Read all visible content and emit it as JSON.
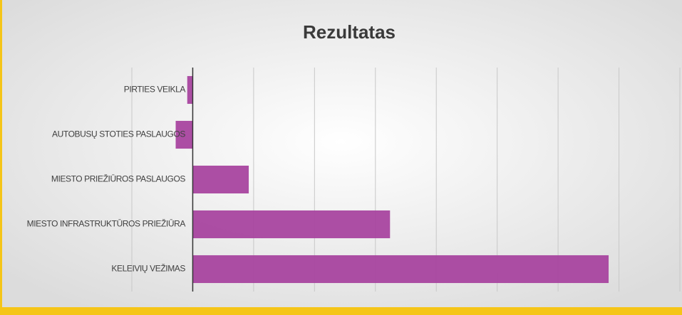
{
  "chart_data": {
    "type": "bar",
    "orientation": "horizontal",
    "title": "Rezultatas",
    "categories": [
      "PIRTIES VEIKLA",
      "AUTOBUSŲ STOTIES PASLAUGOS",
      "MIESTO PRIEŽIŪROS PASLAUGOS",
      "MIESTO INFRASTRUKTŪROS PRIEŽIŪRA",
      "KELEIVIŲ VEŽIMAS"
    ],
    "values": [
      -0.09,
      -0.28,
      0.92,
      3.24,
      6.83
    ],
    "color": "#a8449f",
    "xlim": [
      -1,
      8
    ],
    "xticks": [
      -1,
      0,
      1,
      2,
      3,
      4,
      5,
      6,
      7,
      8
    ],
    "grid": true
  }
}
